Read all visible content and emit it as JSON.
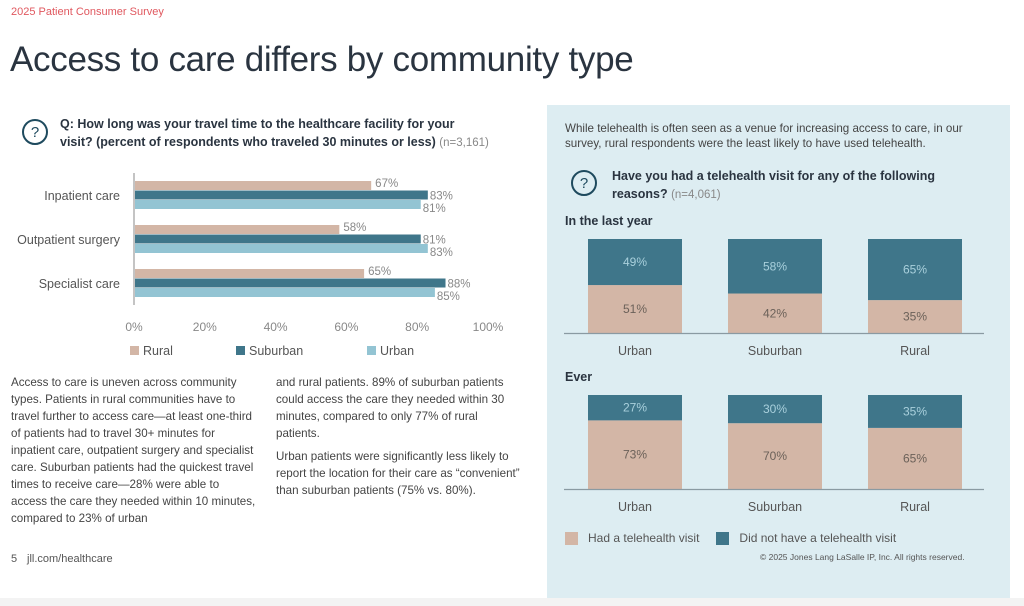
{
  "header": {
    "eyebrow": "2025 Patient Consumer Survey",
    "title": "Access to care differs by community type"
  },
  "left": {
    "question_icon": "question-circle-icon",
    "question_line1": "Q: How long was your travel time to the healthcare facility for your",
    "question_line2": "visit? (percent of respondents who traveled 30 minutes or less)",
    "question_n": "(n=3,161)",
    "body_col1": "Access to care is uneven across community types. Patients in rural communities have to travel further to access care—at least one-third of patients had to travel 30+ minutes for inpatient care, outpatient surgery and specialist care. Suburban patients had the quickest travel times to receive care—28% were able to access the care they needed within 10 minutes, compared to 23% of urban",
    "body_col2_p1": "and rural patients. 89% of suburban patients could access the care they needed within 30 minutes, compared to only 77% of rural patients.",
    "body_col2_p2": "Urban patients were significantly less likely to report the location for their care as “convenient” than suburban patients (75% vs. 80%)."
  },
  "right": {
    "intro": "While telehealth is often seen as a venue for increasing access to care, in our survey, rural respondents were the least likely to have used telehealth.",
    "question_icon": "question-circle-icon",
    "question_line1": "Have you had a telehealth visit for any of the following",
    "question_line2": "reasons?",
    "question_n": "(n=4,061)",
    "copyright": "© 2025 Jones Lang LaSalle IP, Inc. All rights reserved."
  },
  "footer": {
    "page_number": "5",
    "url": "jll.com/healthcare"
  },
  "colors": {
    "rural": "#d3b6a6",
    "suburban": "#3f768a",
    "urban": "#93c4d3",
    "had_visit": "#d3b6a6",
    "no_visit": "#3f768a",
    "accent": "#e0585f"
  },
  "chart_data": [
    {
      "type": "bar",
      "orientation": "horizontal",
      "title": "Percent of respondents who traveled 30 minutes or less",
      "categories": [
        "Inpatient care",
        "Outpatient surgery",
        "Specialist care"
      ],
      "series": [
        {
          "name": "Rural",
          "values": [
            67,
            58,
            65
          ]
        },
        {
          "name": "Suburban",
          "values": [
            83,
            81,
            88
          ]
        },
        {
          "name": "Urban",
          "values": [
            81,
            83,
            85
          ]
        }
      ],
      "xlim": [
        0,
        100
      ],
      "xticks": [
        "0%",
        "20%",
        "40%",
        "60%",
        "80%",
        "100%"
      ],
      "grid": false,
      "legend": "bottom"
    },
    {
      "type": "bar",
      "stacked": true,
      "title": "In the last year",
      "categories": [
        "Urban",
        "Suburban",
        "Rural"
      ],
      "series": [
        {
          "name": "Had a telehealth visit",
          "values": [
            51,
            42,
            35
          ]
        },
        {
          "name": "Did not have a telehealth visit",
          "values": [
            49,
            58,
            65
          ]
        }
      ],
      "ylim": [
        0,
        100
      ],
      "legend": "bottom"
    },
    {
      "type": "bar",
      "stacked": true,
      "title": "Ever",
      "categories": [
        "Urban",
        "Suburban",
        "Rural"
      ],
      "series": [
        {
          "name": "Had a telehealth visit",
          "values": [
            73,
            70,
            65
          ]
        },
        {
          "name": "Did not have a telehealth visit",
          "values": [
            27,
            30,
            35
          ]
        }
      ],
      "ylim": [
        0,
        100
      ],
      "legend": "bottom"
    }
  ]
}
